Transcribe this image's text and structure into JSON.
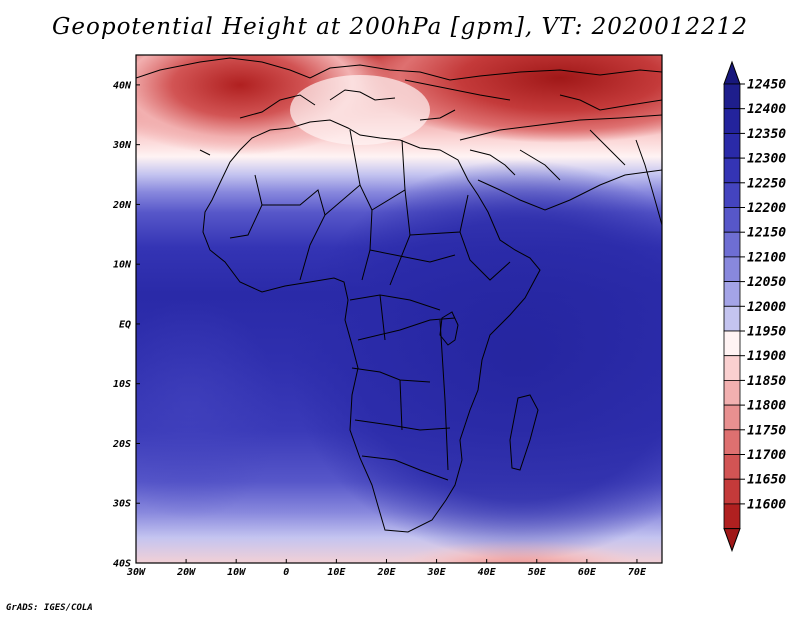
{
  "title": "Geopotential Height at 200hPa [gpm], VT: 2020012212",
  "credit": "GrADS: IGES/COLA",
  "map": {
    "lon_range": [
      -30,
      75
    ],
    "lat_range": [
      -40,
      45
    ],
    "x_ticks": [
      {
        "lon": -30,
        "label": "30W"
      },
      {
        "lon": -20,
        "label": "20W"
      },
      {
        "lon": -10,
        "label": "10W"
      },
      {
        "lon": 0,
        "label": "0"
      },
      {
        "lon": 10,
        "label": "10E"
      },
      {
        "lon": 20,
        "label": "20E"
      },
      {
        "lon": 30,
        "label": "30E"
      },
      {
        "lon": 40,
        "label": "40E"
      },
      {
        "lon": 50,
        "label": "50E"
      },
      {
        "lon": 60,
        "label": "60E"
      },
      {
        "lon": 70,
        "label": "70E"
      }
    ],
    "y_ticks": [
      {
        "lat": 40,
        "label": "40N"
      },
      {
        "lat": 30,
        "label": "30N"
      },
      {
        "lat": 20,
        "label": "20N"
      },
      {
        "lat": 10,
        "label": "10N"
      },
      {
        "lat": 0,
        "label": "EQ"
      },
      {
        "lat": -10,
        "label": "10S"
      },
      {
        "lat": -20,
        "label": "20S"
      },
      {
        "lat": -30,
        "label": "30S"
      },
      {
        "lat": -40,
        "label": "40S"
      }
    ]
  },
  "colorbar": {
    "levels": [
      {
        "label": "12450",
        "color": "#1e1e8c"
      },
      {
        "label": "12400",
        "color": "#23239c"
      },
      {
        "label": "12350",
        "color": "#2a2aa8"
      },
      {
        "label": "12300",
        "color": "#3434b4"
      },
      {
        "label": "12250",
        "color": "#4444bf"
      },
      {
        "label": "12200",
        "color": "#5757c9"
      },
      {
        "label": "12150",
        "color": "#6e6ed3"
      },
      {
        "label": "12100",
        "color": "#8888dd"
      },
      {
        "label": "12050",
        "color": "#a4a4e7"
      },
      {
        "label": "12000",
        "color": "#c4c4f0"
      },
      {
        "label": "11950",
        "color": "#fff3f3"
      },
      {
        "label": "11900",
        "color": "#fad0d0"
      },
      {
        "label": "11850",
        "color": "#f2b0b0"
      },
      {
        "label": "11800",
        "color": "#e89090"
      },
      {
        "label": "11750",
        "color": "#de7070"
      },
      {
        "label": "11700",
        "color": "#d25454"
      },
      {
        "label": "11650",
        "color": "#c43a3a"
      },
      {
        "label": "11600",
        "color": "#b02020"
      }
    ],
    "top_arrow_color": "#18187c",
    "bottom_arrow_color": "#a01818"
  }
}
